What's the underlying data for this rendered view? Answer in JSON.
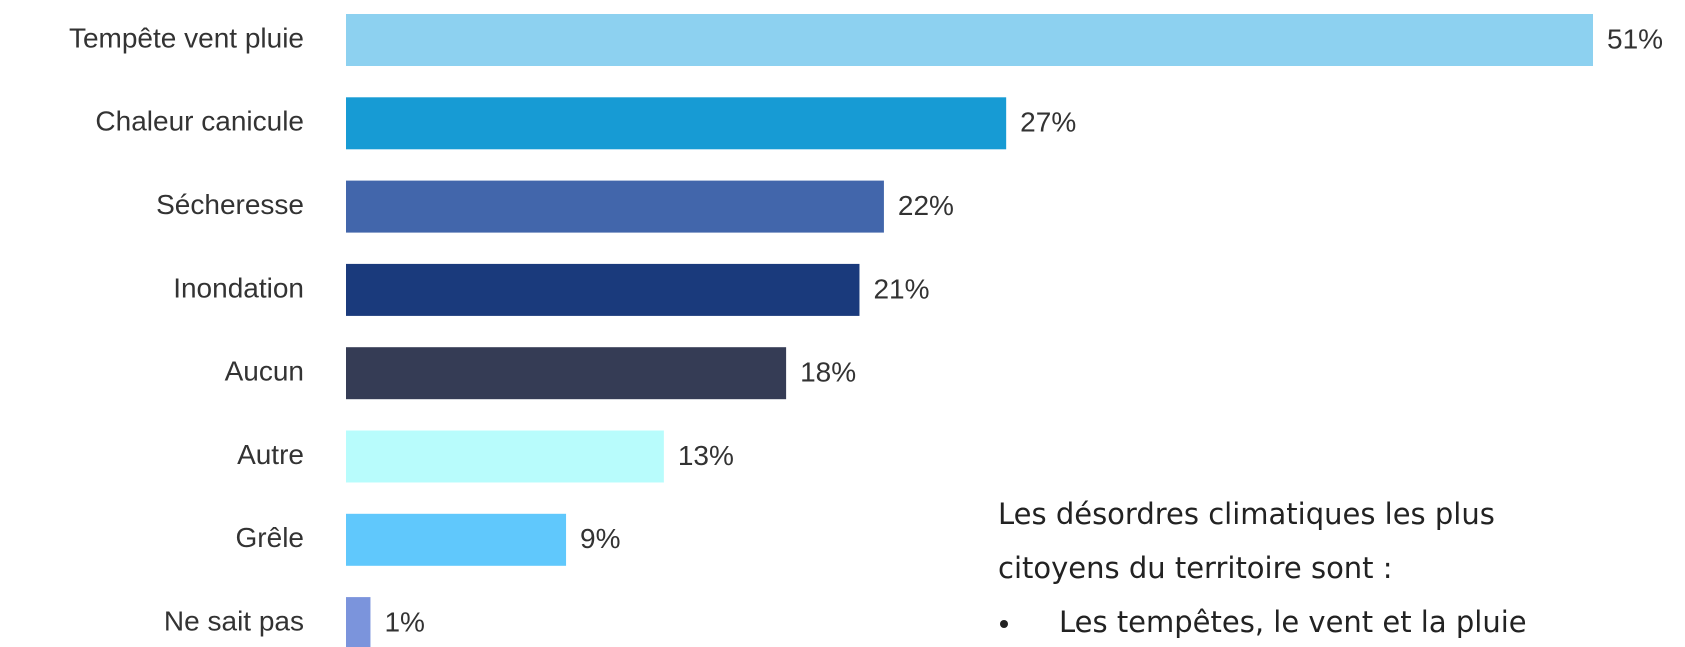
{
  "chart_data": {
    "type": "bar",
    "orientation": "horizontal",
    "categories": [
      "Tempête vent pluie",
      "Chaleur canicule",
      "Sécheresse",
      "Inondation",
      "Aucun",
      "Autre",
      "Grêle",
      "Ne sait pas"
    ],
    "values": [
      51,
      27,
      22,
      21,
      18,
      13,
      9,
      1
    ],
    "value_labels": [
      "51%",
      "27%",
      "22%",
      "21%",
      "18%",
      "13%",
      "9%",
      "1%"
    ],
    "colors": [
      "#8dd1f0",
      "#179bd4",
      "#4266ab",
      "#1a3a7c",
      "#353c55",
      "#b8fcfc",
      "#60c8fc",
      "#7b94dc"
    ],
    "grid": false
  },
  "text_block": {
    "lines": [
      "Les désordres climatiques les plus",
      "citoyens du territoire sont :"
    ],
    "bullets": [
      "Les tempêtes, le vent et la pluie"
    ]
  }
}
